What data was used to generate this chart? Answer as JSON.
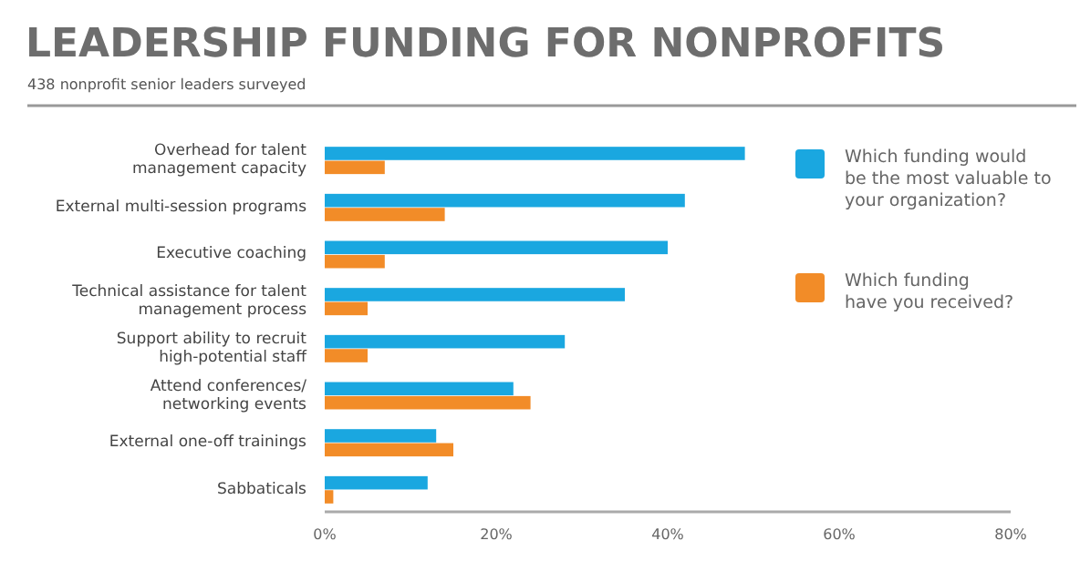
{
  "chart_data": {
    "type": "bar",
    "orientation": "horizontal",
    "title": "LEADERSHIP FUNDING FOR NONPROFITS",
    "subtitle": "438 nonprofit senior leaders surveyed",
    "categories": [
      "Overhead for talent\nmanagement capacity",
      "External multi-session programs",
      "Executive coaching",
      "Technical assistance for talent\nmanagement process",
      "Support ability to recruit\nhigh-potential staff",
      "Attend conferences/\nnetworking events",
      "External one-off trainings",
      "Sabbaticals"
    ],
    "series": [
      {
        "name": "Which funding would\nbe the most valuable to\nyour organization?",
        "color": "#1aa7e0",
        "values": [
          49,
          42,
          40,
          35,
          28,
          22,
          13,
          12
        ]
      },
      {
        "name": "Which funding\nhave you received?",
        "color": "#f28c28",
        "values": [
          7,
          14,
          7,
          5,
          5,
          24,
          15,
          1
        ]
      }
    ],
    "xlim": [
      0,
      80
    ],
    "xticks": [
      {
        "value": 0,
        "label": "0%"
      },
      {
        "value": 20,
        "label": "20%"
      },
      {
        "value": 40,
        "label": "40%"
      },
      {
        "value": 60,
        "label": "60%"
      },
      {
        "value": 80,
        "label": "80%"
      }
    ],
    "legend": "right",
    "grid": false
  }
}
